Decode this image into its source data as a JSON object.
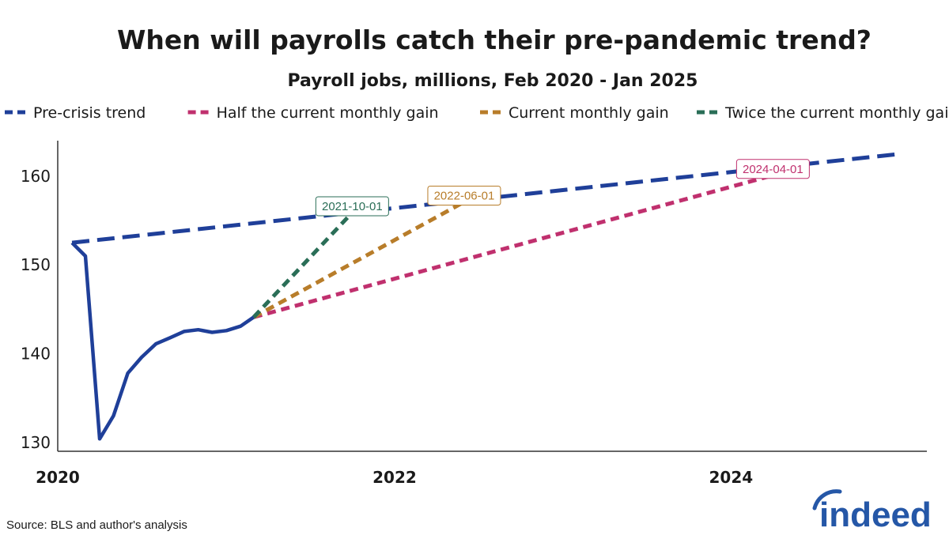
{
  "chart_data": {
    "type": "line",
    "title": "When will payrolls catch their pre-pandemic trend?",
    "subtitle": "Payroll jobs, millions, Feb 2020 - Jan 2025",
    "ylim": [
      129,
      164
    ],
    "yticks": [
      130,
      140,
      150,
      160
    ],
    "xlim": [
      "2020-01-01",
      "2025-03-01"
    ],
    "xticks": [
      {
        "value": "2020-01-01",
        "label": "2020"
      },
      {
        "value": "2022-01-01",
        "label": "2022"
      },
      {
        "value": "2024-01-01",
        "label": "2024"
      }
    ],
    "grid": false,
    "legend_position": "top",
    "series": [
      {
        "name": "Pre-crisis trend",
        "color": "#1f3f99",
        "style": "dashed",
        "points": [
          [
            "2020-02-01",
            152.5
          ],
          [
            "2025-01-01",
            162.5
          ]
        ]
      },
      {
        "name": "Half the current monthly gain",
        "color": "#c0306e",
        "style": "dotted",
        "points": [
          [
            "2021-03-01",
            144.1
          ],
          [
            "2024-04-01",
            160.1
          ]
        ]
      },
      {
        "name": "Current monthly gain",
        "color": "#b87d2a",
        "style": "dotted",
        "points": [
          [
            "2021-03-01",
            144.1
          ],
          [
            "2022-06-01",
            157.1
          ]
        ]
      },
      {
        "name": "Twice the current monthly gain",
        "color": "#2a6e57",
        "style": "dotted",
        "points": [
          [
            "2021-03-01",
            144.1
          ],
          [
            "2021-10-01",
            155.9
          ]
        ]
      },
      {
        "name": "",
        "color": "#1f3f99",
        "style": "solid",
        "points": [
          [
            "2020-02-01",
            152.5
          ],
          [
            "2020-03-01",
            151.0
          ],
          [
            "2020-04-01",
            130.4
          ],
          [
            "2020-05-01",
            133.0
          ],
          [
            "2020-06-01",
            137.8
          ],
          [
            "2020-07-01",
            139.6
          ],
          [
            "2020-08-01",
            141.1
          ],
          [
            "2020-09-01",
            141.8
          ],
          [
            "2020-10-01",
            142.5
          ],
          [
            "2020-11-01",
            142.7
          ],
          [
            "2020-12-01",
            142.4
          ],
          [
            "2021-01-01",
            142.6
          ],
          [
            "2021-02-01",
            143.1
          ],
          [
            "2021-03-01",
            144.1
          ]
        ]
      }
    ],
    "annotations": [
      {
        "label": "2021-10-01",
        "x": "2021-10-01",
        "y": 155.9,
        "color": "#2a6e57"
      },
      {
        "label": "2022-06-01",
        "x": "2022-06-01",
        "y": 157.1,
        "color": "#b87d2a"
      },
      {
        "label": "2024-04-01",
        "x": "2024-04-01",
        "y": 160.1,
        "color": "#c0306e"
      }
    ]
  },
  "source": "Source: BLS and author's analysis",
  "logo": {
    "text": "indeed",
    "color": "#2557a7"
  }
}
